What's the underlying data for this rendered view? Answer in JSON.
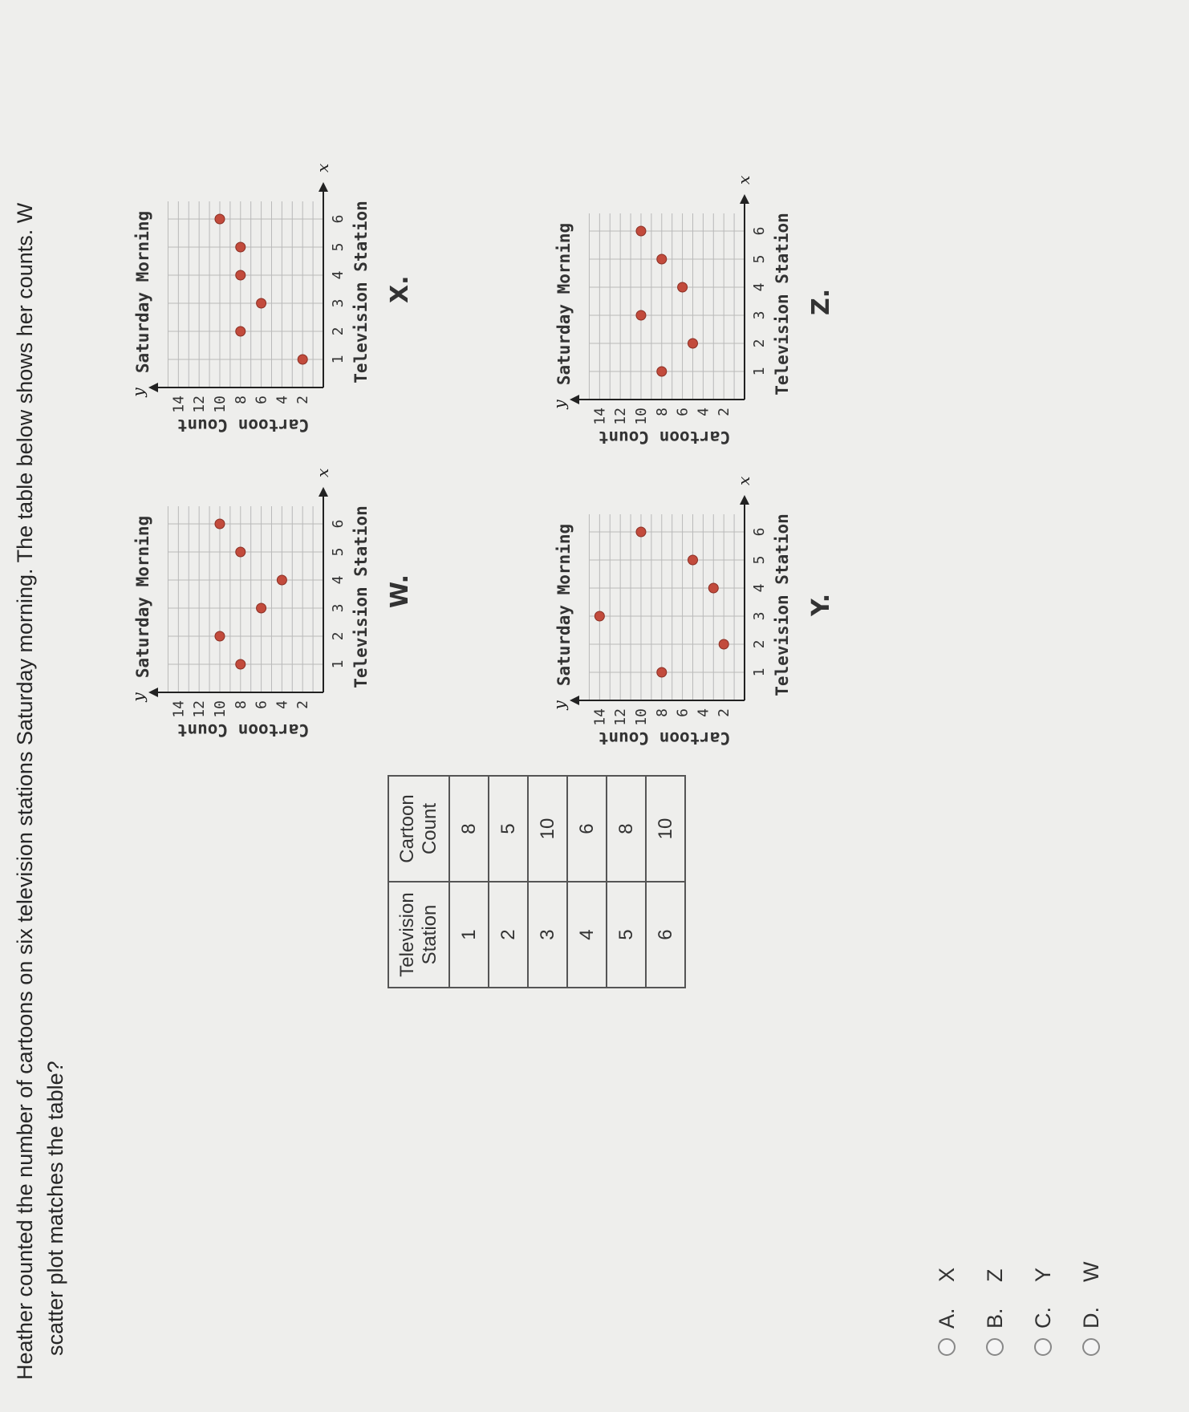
{
  "question": {
    "line1": "Heather counted the number of cartoons on six television stations Saturday morning. The table below shows her counts. W",
    "line2": "scatter plot matches the table?"
  },
  "table": {
    "headers": [
      "Television Station",
      "Cartoon Count"
    ],
    "rows": [
      [
        "1",
        "8"
      ],
      [
        "2",
        "5"
      ],
      [
        "3",
        "10"
      ],
      [
        "4",
        "6"
      ],
      [
        "5",
        "8"
      ],
      [
        "6",
        "10"
      ]
    ]
  },
  "chart_data": [
    {
      "type": "scatter",
      "title": "Saturday Morning",
      "label": "W.",
      "xlabel": "Television Station",
      "ylabel": "Cartoon Count",
      "x": [
        1,
        2,
        3,
        4,
        5,
        6
      ],
      "y": [
        8,
        10,
        6,
        4,
        8,
        10
      ],
      "xticks": [
        "1",
        "2",
        "3",
        "4",
        "5",
        "6"
      ],
      "yticks": [
        "2",
        "4",
        "6",
        "8",
        "10",
        "12",
        "14"
      ],
      "xlim": [
        0,
        6.8
      ],
      "ylim": [
        0,
        15.5
      ],
      "axis_x": "x",
      "axis_y": "y"
    },
    {
      "type": "scatter",
      "title": "Saturday Morning",
      "label": "X.",
      "xlabel": "Television Station",
      "ylabel": "Cartoon Count",
      "x": [
        1,
        2,
        3,
        4,
        5,
        6
      ],
      "y": [
        2,
        8,
        6,
        8,
        8,
        10
      ],
      "xticks": [
        "1",
        "2",
        "3",
        "4",
        "5",
        "6"
      ],
      "yticks": [
        "2",
        "4",
        "6",
        "8",
        "10",
        "12",
        "14"
      ],
      "xlim": [
        0,
        6.8
      ],
      "ylim": [
        0,
        15.5
      ],
      "axis_x": "x",
      "axis_y": "y"
    },
    {
      "type": "scatter",
      "title": "Saturday Morning",
      "label": "Y.",
      "xlabel": "Television Station",
      "ylabel": "Cartoon Count",
      "x": [
        1,
        2,
        3,
        4,
        5,
        6
      ],
      "y": [
        8,
        2,
        14,
        3,
        5,
        10
      ],
      "xticks": [
        "1",
        "2",
        "3",
        "4",
        "5",
        "6"
      ],
      "yticks": [
        "2",
        "4",
        "6",
        "8",
        "10",
        "12",
        "14"
      ],
      "xlim": [
        0,
        6.8
      ],
      "ylim": [
        0,
        15.5
      ],
      "axis_x": "x",
      "axis_y": "y"
    },
    {
      "type": "scatter",
      "title": "Saturday Morning",
      "label": "Z.",
      "xlabel": "Television Station",
      "ylabel": "Cartoon Count",
      "x": [
        1,
        2,
        3,
        4,
        5,
        6
      ],
      "y": [
        8,
        5,
        10,
        6,
        8,
        10
      ],
      "xticks": [
        "1",
        "2",
        "3",
        "4",
        "5",
        "6"
      ],
      "yticks": [
        "2",
        "4",
        "6",
        "8",
        "10",
        "12",
        "14"
      ],
      "xlim": [
        0,
        6.8
      ],
      "ylim": [
        0,
        15.5
      ],
      "axis_x": "x",
      "axis_y": "y"
    }
  ],
  "choices": [
    {
      "letter": "A.",
      "text": "X"
    },
    {
      "letter": "B.",
      "text": "Z"
    },
    {
      "letter": "C.",
      "text": "Y"
    },
    {
      "letter": "D.",
      "text": "W"
    }
  ],
  "colors": {
    "point": "#c24b3c",
    "grid": "#b9b9b9",
    "axis": "#222222"
  }
}
